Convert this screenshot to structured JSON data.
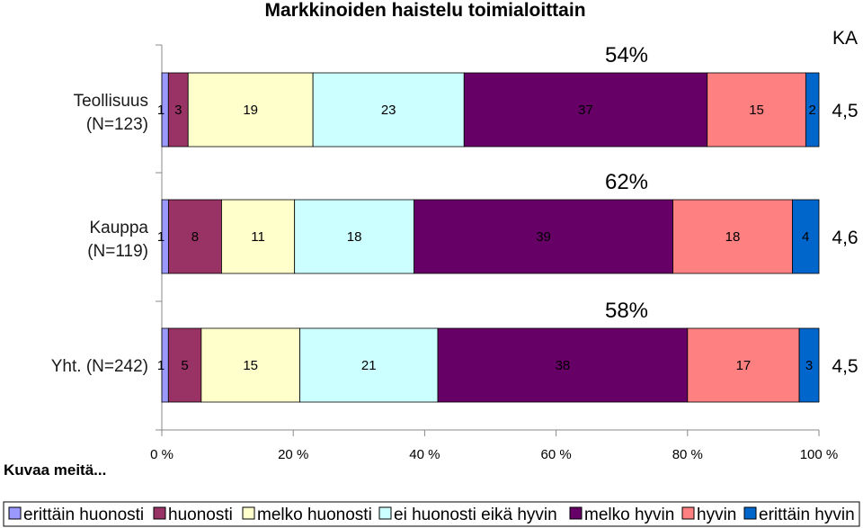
{
  "chart_data": {
    "type": "bar",
    "orientation": "horizontal",
    "stacked": "percent",
    "title": "Markkinoiden haistelu toimialoittain",
    "subtitle_label": "Kuvaa meitä...",
    "ka_header": "KA",
    "categories": [
      "Teollisuus (N=123)",
      "Kauppa (N=119)",
      "Yht. (N=242)"
    ],
    "category_lines": [
      [
        "Teollisuus",
        "(N=123)"
      ],
      [
        "Kauppa",
        "(N=119)"
      ],
      [
        "Yht. (N=242)"
      ]
    ],
    "series": [
      {
        "name": "erittäin huonosti",
        "color": "#9999ff",
        "values": [
          1,
          1,
          1
        ]
      },
      {
        "name": "huonosti",
        "color": "#993366",
        "values": [
          3,
          8,
          5
        ]
      },
      {
        "name": "melko huonosti",
        "color": "#ffffcc",
        "values": [
          19,
          11,
          15
        ]
      },
      {
        "name": "ei huonosti eikä hyvin",
        "color": "#ccffff",
        "values": [
          23,
          18,
          21
        ]
      },
      {
        "name": "melko hyvin",
        "color": "#660066",
        "values": [
          37,
          39,
          38
        ]
      },
      {
        "name": "hyvin",
        "color": "#ff8080",
        "values": [
          15,
          18,
          17
        ]
      },
      {
        "name": "erittäin hyvin",
        "color": "#0066cc",
        "values": [
          2,
          4,
          3
        ]
      }
    ],
    "positive_share_labels": [
      "54%",
      "62%",
      "58%"
    ],
    "ka_values": [
      "4,5",
      "4,6",
      "4,5"
    ],
    "xlim": [
      0,
      100
    ],
    "x_ticks": [
      "0 %",
      "20 %",
      "40 %",
      "60 %",
      "80 %",
      "100 %"
    ],
    "legend_position": "bottom",
    "grid": false
  }
}
